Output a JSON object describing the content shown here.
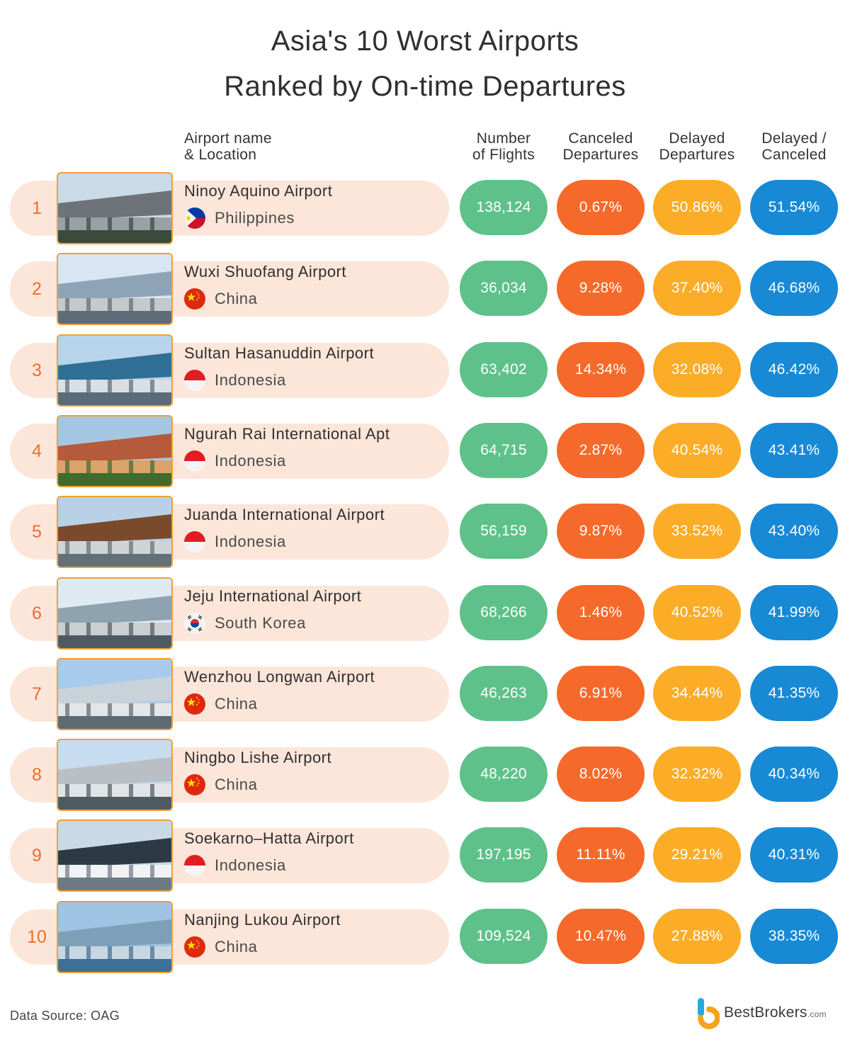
{
  "title_line1": "Asia's 10 Worst Airports",
  "title_line2": "Ranked by On-time Departures",
  "headers": {
    "airport_line1": "Airport name",
    "airport_line2": "& Location",
    "flights_line1": "Number",
    "flights_line2": "of Flights",
    "canceled_line1": "Canceled",
    "canceled_line2": "Departures",
    "delayed_line1": "Delayed",
    "delayed_line2": "Departures",
    "total_line1": "Delayed /",
    "total_line2": "Canceled"
  },
  "colors": {
    "flights": "#5fc18a",
    "canceled": "#f5692a",
    "delayed": "#fbad27",
    "total": "#1889d4",
    "row_bg": "#fce6d9",
    "rank": "#f26b2a"
  },
  "rows": [
    {
      "rank": "1",
      "airport": "Ninoy Aquino Airport",
      "country": "Philippines",
      "flag": "philippines-flag-icon",
      "flights": "138,124",
      "canceled": "0.67%",
      "delayed": "50.86%",
      "total": "51.54%"
    },
    {
      "rank": "2",
      "airport": "Wuxi Shuofang Airport",
      "country": "China",
      "flag": "china-flag-icon",
      "flights": "36,034",
      "canceled": "9.28%",
      "delayed": "37.40%",
      "total": "46.68%"
    },
    {
      "rank": "3",
      "airport": "Sultan Hasanuddin Airport",
      "country": "Indonesia",
      "flag": "indonesia-flag-icon",
      "flights": "63,402",
      "canceled": "14.34%",
      "delayed": "32.08%",
      "total": "46.42%"
    },
    {
      "rank": "4",
      "airport": "Ngurah Rai International Apt",
      "country": "Indonesia",
      "flag": "indonesia-flag-icon",
      "flights": "64,715",
      "canceled": "2.87%",
      "delayed": "40.54%",
      "total": "43.41%"
    },
    {
      "rank": "5",
      "airport": "Juanda International Airport",
      "country": "Indonesia",
      "flag": "indonesia-flag-icon",
      "flights": "56,159",
      "canceled": "9.87%",
      "delayed": "33.52%",
      "total": "43.40%"
    },
    {
      "rank": "6",
      "airport": "Jeju International Airport",
      "country": "South Korea",
      "flag": "south-korea-flag-icon",
      "flights": "68,266",
      "canceled": "1.46%",
      "delayed": "40.52%",
      "total": "41.99%"
    },
    {
      "rank": "7",
      "airport": "Wenzhou Longwan Airport",
      "country": "China",
      "flag": "china-flag-icon",
      "flights": "46,263",
      "canceled": "6.91%",
      "delayed": "34.44%",
      "total": "41.35%"
    },
    {
      "rank": "8",
      "airport": "Ningbo Lishe Airport",
      "country": "China",
      "flag": "china-flag-icon",
      "flights": "48,220",
      "canceled": "8.02%",
      "delayed": "32.32%",
      "total": "40.34%"
    },
    {
      "rank": "9",
      "airport": "Soekarno–Hatta Airport",
      "country": "Indonesia",
      "flag": "indonesia-flag-icon",
      "flights": "197,195",
      "canceled": "11.11%",
      "delayed": "29.21%",
      "total": "40.31%"
    },
    {
      "rank": "10",
      "airport": "Nanjing Lukou Airport",
      "country": "China",
      "flag": "china-flag-icon",
      "flights": "109,524",
      "canceled": "10.47%",
      "delayed": "27.88%",
      "total": "38.35%"
    }
  ],
  "footer_source": "Data Source: OAG",
  "brand_name": "BestBrokers",
  "brand_suffix": ".com",
  "chart_data": {
    "type": "table",
    "title": "Asia's 10 Worst Airports Ranked by On-time Departures",
    "columns": [
      "Airport name & Location",
      "Number of Flights",
      "Canceled Departures",
      "Delayed Departures",
      "Delayed / Canceled"
    ],
    "rows": [
      [
        "Ninoy Aquino Airport, Philippines",
        138124,
        0.67,
        50.86,
        51.54
      ],
      [
        "Wuxi Shuofang Airport, China",
        36034,
        9.28,
        37.4,
        46.68
      ],
      [
        "Sultan Hasanuddin Airport, Indonesia",
        63402,
        14.34,
        32.08,
        46.42
      ],
      [
        "Ngurah Rai International Apt, Indonesia",
        64715,
        2.87,
        40.54,
        43.41
      ],
      [
        "Juanda International Airport, Indonesia",
        56159,
        9.87,
        33.52,
        43.4
      ],
      [
        "Jeju International Airport, South Korea",
        68266,
        1.46,
        40.52,
        41.99
      ],
      [
        "Wenzhou Longwan Airport, China",
        46263,
        6.91,
        34.44,
        41.35
      ],
      [
        "Ningbo Lishe Airport, China",
        48220,
        8.02,
        32.32,
        40.34
      ],
      [
        "Soekarno–Hatta Airport, Indonesia",
        197195,
        11.11,
        29.21,
        40.31
      ],
      [
        "Nanjing Lukou Airport, China",
        109524,
        10.47,
        27.88,
        38.35
      ]
    ]
  }
}
